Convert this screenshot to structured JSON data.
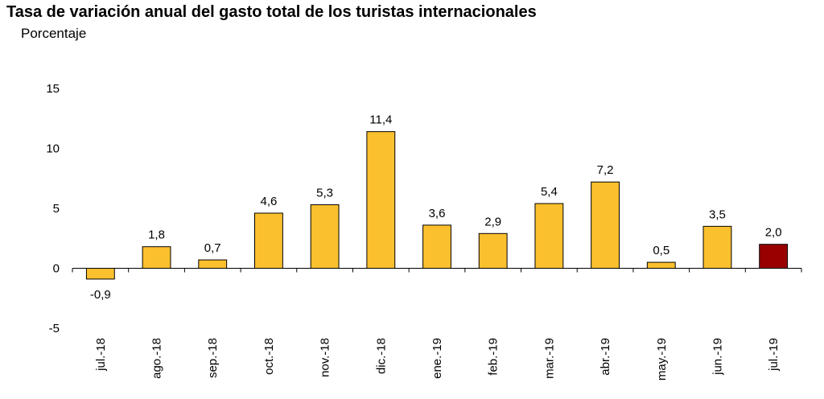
{
  "chart_data": {
    "type": "bar",
    "title": "Tasa de variación anual del gasto total de los turistas internacionales",
    "subtitle": "Porcentaje",
    "xlabel": "",
    "ylabel": "",
    "ylim": [
      -5,
      15
    ],
    "yticks": [
      "-5",
      "0",
      "5",
      "10",
      "15"
    ],
    "yticks_values": [
      -5,
      0,
      5,
      10,
      15
    ],
    "grid": false,
    "categories": [
      "jul.-18",
      "ago.-18",
      "sep.-18",
      "oct.-18",
      "nov.-18",
      "dic.-18",
      "ene.-19",
      "feb.-19",
      "mar.-19",
      "abr.-19",
      "may.-19",
      "jun.-19",
      "jul.-19"
    ],
    "values": [
      -0.9,
      1.8,
      0.7,
      4.6,
      5.3,
      11.4,
      3.6,
      2.9,
      5.4,
      7.2,
      0.5,
      3.5,
      2.0
    ],
    "data_labels": [
      "-0,9",
      "1,8",
      "0,7",
      "4,6",
      "5,3",
      "11,4",
      "3,6",
      "2,9",
      "5,4",
      "7,2",
      "0,5",
      "3,5",
      "2,0"
    ],
    "colors": {
      "bar": "#FBC02D",
      "highlight": "#990000",
      "bar_stroke": "#000000",
      "axis": "#000000"
    },
    "highlight_index": 12
  }
}
